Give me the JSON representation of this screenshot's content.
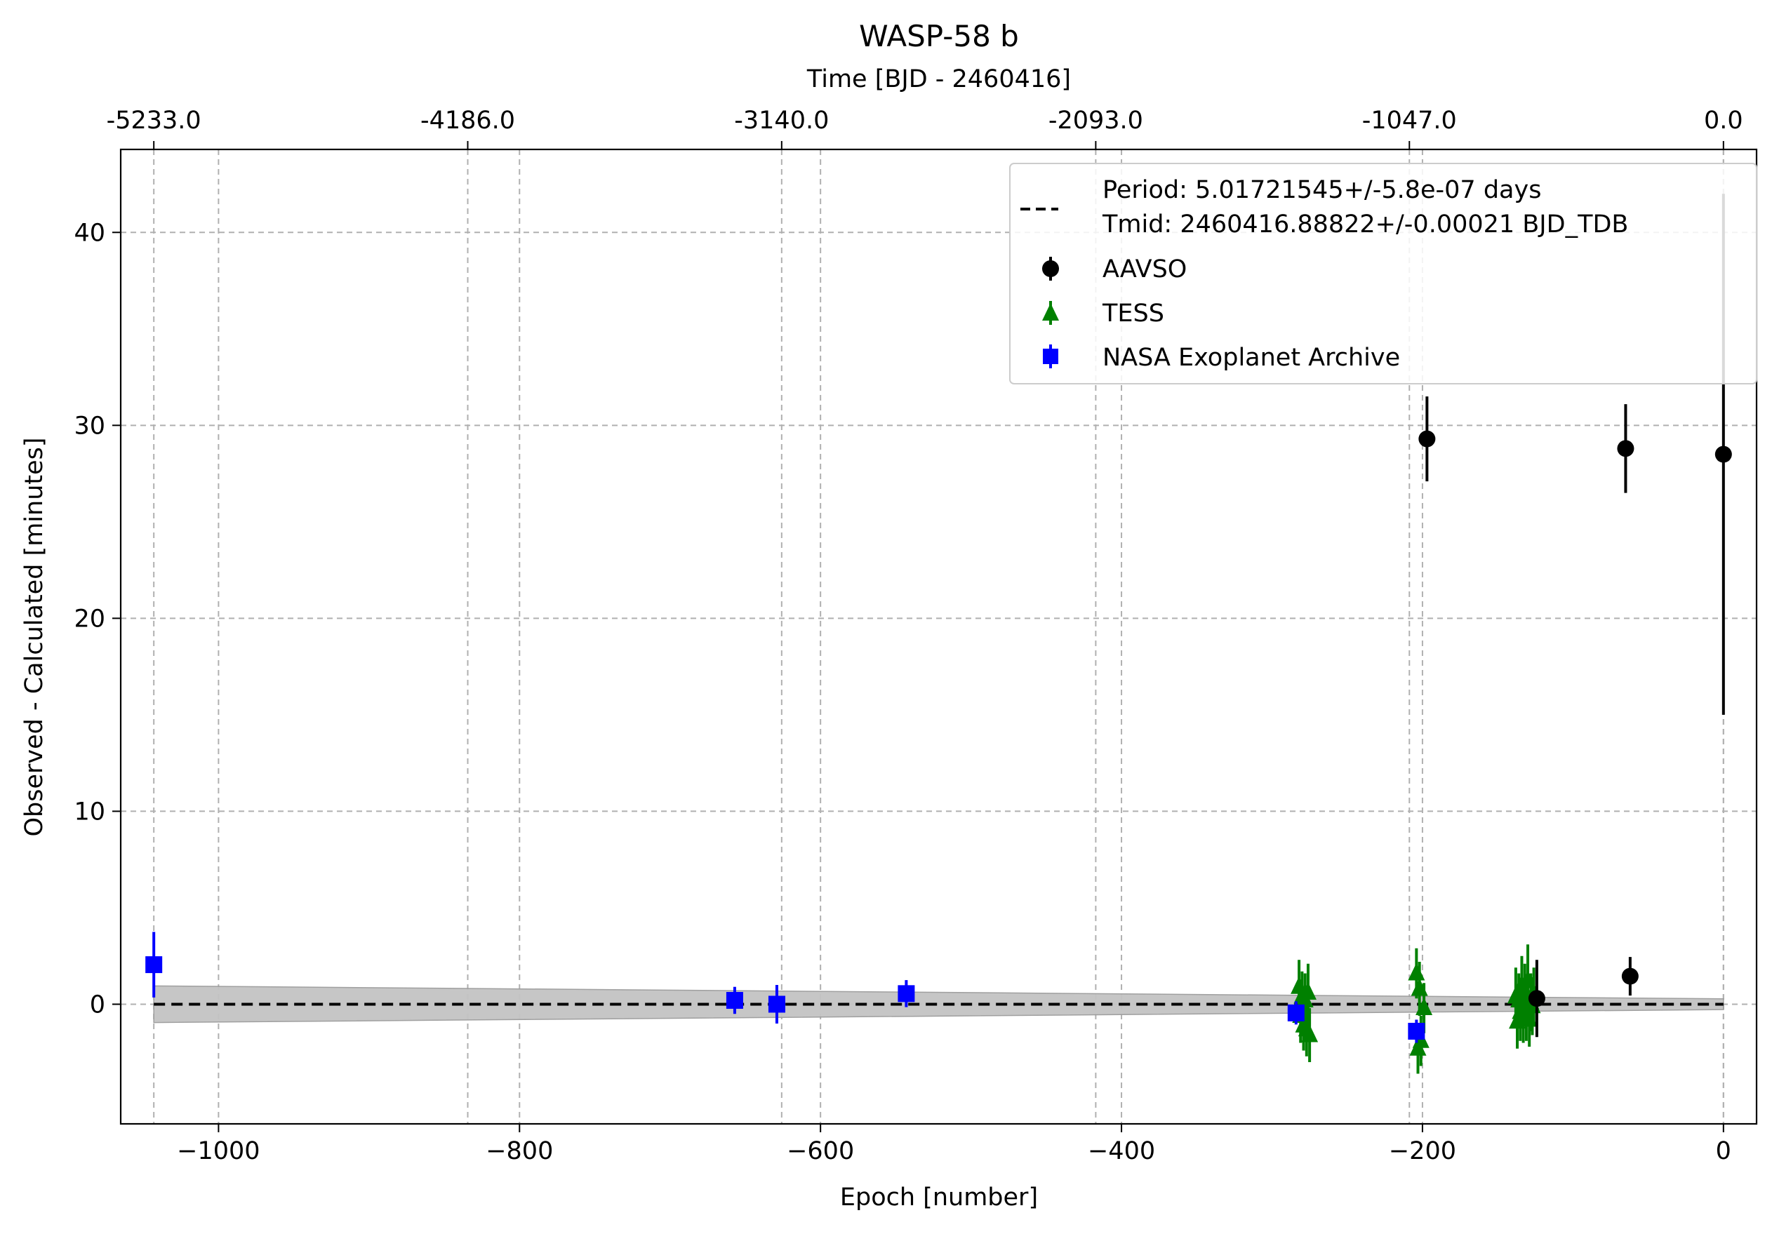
{
  "chart_data": {
    "type": "scatter",
    "title": "WASP-58 b",
    "xlabel": "Epoch [number]",
    "ylabel": "Observed - Calculated [minutes]",
    "top_xlabel": "Time [BJD - 2460416]",
    "xlim": [
      -1065,
      22
    ],
    "ylim": [
      -6.2,
      44.3
    ],
    "grid": true,
    "legend_position": "top-right",
    "x_ticks": [
      -1000,
      -800,
      -600,
      -400,
      -200,
      0
    ],
    "x_tick_labels": [
      "−1000",
      "−800",
      "−600",
      "−400",
      "−200",
      "0"
    ],
    "y_ticks": [
      0,
      10,
      20,
      30,
      40
    ],
    "y_tick_labels": [
      "0",
      "10",
      "20",
      "30",
      "40"
    ],
    "top_ticks_epoch": [
      -1043,
      -834.4,
      -625.8,
      -417.1,
      -208.7,
      0
    ],
    "top_tick_labels": [
      "-5233.0",
      "-4186.0",
      "-3140.0",
      "-2093.0",
      "-1047.0",
      "0.0"
    ],
    "fit": {
      "label_period": "Period: 5.01721545+/-5.8e-07 days",
      "label_tmid": "Tmid: 2460416.88822+/-0.00021 BJD_TDB",
      "x": [
        -1043,
        0
      ],
      "y": [
        0,
        0
      ],
      "band_upper": [
        0.95,
        0.28
      ],
      "band_lower": [
        -0.95,
        -0.28
      ],
      "color": "#000000",
      "band_color": "#c4c4c4"
    },
    "series": [
      {
        "name": "AAVSO",
        "marker": "circle",
        "color": "#000000",
        "points": [
          {
            "x": -197,
            "y": 29.3,
            "err": 2.2
          },
          {
            "x": -124,
            "y": 0.3,
            "err": 2.0
          },
          {
            "x": -65,
            "y": 28.8,
            "err": 2.3
          },
          {
            "x": -62,
            "y": 1.45,
            "err": 1.0
          },
          {
            "x": 0,
            "y": 28.5,
            "err": 13.5
          }
        ]
      },
      {
        "name": "TESS",
        "marker": "triangle",
        "color": "#008000",
        "points": [
          {
            "x": -282,
            "y": 0.9,
            "err": 1.4
          },
          {
            "x": -281,
            "y": -0.6,
            "err": 1.4
          },
          {
            "x": -280,
            "y": 0.4,
            "err": 1.3
          },
          {
            "x": -279,
            "y": -1.1,
            "err": 1.3
          },
          {
            "x": -278,
            "y": 0.2,
            "err": 1.4
          },
          {
            "x": -277,
            "y": -1.3,
            "err": 1.4
          },
          {
            "x": -276,
            "y": 0.6,
            "err": 1.5
          },
          {
            "x": -275,
            "y": -1.6,
            "err": 1.4
          },
          {
            "x": -204,
            "y": 1.6,
            "err": 1.3
          },
          {
            "x": -203,
            "y": -2.3,
            "err": 1.3
          },
          {
            "x": -202,
            "y": 0.8,
            "err": 1.4
          },
          {
            "x": -201,
            "y": -1.9,
            "err": 1.3
          },
          {
            "x": -199,
            "y": -0.2,
            "err": 1.3
          },
          {
            "x": -138,
            "y": 0.4,
            "err": 1.5
          },
          {
            "x": -137,
            "y": -0.9,
            "err": 1.4
          },
          {
            "x": -136,
            "y": 0.2,
            "err": 1.4
          },
          {
            "x": -135,
            "y": -0.4,
            "err": 1.5
          },
          {
            "x": -134,
            "y": 1.0,
            "err": 1.5
          },
          {
            "x": -133,
            "y": -0.6,
            "err": 1.4
          },
          {
            "x": -132,
            "y": 0.6,
            "err": 1.5
          },
          {
            "x": -131,
            "y": -0.3,
            "err": 1.6
          },
          {
            "x": -130,
            "y": 1.2,
            "err": 1.9
          },
          {
            "x": -129,
            "y": -0.8,
            "err": 1.4
          },
          {
            "x": -128,
            "y": 0.1,
            "err": 1.5
          },
          {
            "x": -127,
            "y": -0.1,
            "err": 1.5
          },
          {
            "x": -126,
            "y": 0.5,
            "err": 1.4
          }
        ]
      },
      {
        "name": "NASA Exoplanet Archive",
        "marker": "square",
        "color": "#0000ff",
        "points": [
          {
            "x": -1043,
            "y": 2.05,
            "err": 1.7
          },
          {
            "x": -657,
            "y": 0.2,
            "err": 0.7
          },
          {
            "x": -629,
            "y": 0.0,
            "err": 1.0
          },
          {
            "x": -543,
            "y": 0.55,
            "err": 0.7
          },
          {
            "x": -284,
            "y": -0.45,
            "err": 0.6
          },
          {
            "x": -204,
            "y": -1.4,
            "err": 0.6
          }
        ]
      }
    ]
  }
}
